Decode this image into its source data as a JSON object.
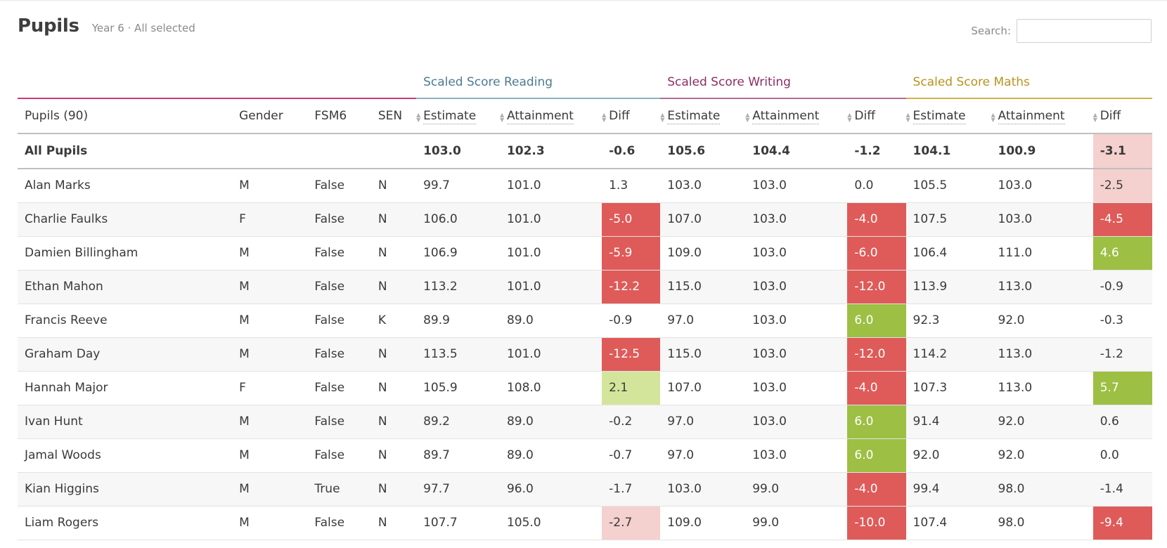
{
  "header": {
    "title": "Pupils",
    "subtitle": "Year 6 · All selected"
  },
  "search": {
    "label": "Search:",
    "value": "",
    "placeholder": ""
  },
  "groups": {
    "reading": "Scaled Score Reading",
    "writing": "Scaled Score Writing",
    "maths": "Scaled Score Maths"
  },
  "columns": {
    "pupils": "Pupils (90)",
    "gender": "Gender",
    "fsm6": "FSM6",
    "sen": "SEN",
    "estimate": "Estimate",
    "attainment": "Attainment",
    "diff": "Diff"
  },
  "colors": {
    "red": "#de5b59",
    "pink": "#f4d0cf",
    "green": "#9dbf44",
    "lightgreen": "#d3e59b"
  },
  "summary": {
    "label": "All Pupils",
    "reading": {
      "estimate": "103.0",
      "attainment": "102.3",
      "diff": "-0.6"
    },
    "writing": {
      "estimate": "105.6",
      "attainment": "104.4",
      "diff": "-1.2"
    },
    "maths": {
      "estimate": "104.1",
      "attainment": "100.9",
      "diff": "-3.1"
    }
  },
  "rows": [
    {
      "name": "Alan Marks",
      "gender": "M",
      "fsm6": "False",
      "sen": "N",
      "reading": {
        "estimate": "99.7",
        "attainment": "101.0",
        "diff": "1.3"
      },
      "writing": {
        "estimate": "103.0",
        "attainment": "103.0",
        "diff": "0.0"
      },
      "maths": {
        "estimate": "105.5",
        "attainment": "103.0",
        "diff": "-2.5"
      }
    },
    {
      "name": "Charlie Faulks",
      "gender": "F",
      "fsm6": "False",
      "sen": "N",
      "reading": {
        "estimate": "106.0",
        "attainment": "101.0",
        "diff": "-5.0"
      },
      "writing": {
        "estimate": "107.0",
        "attainment": "103.0",
        "diff": "-4.0"
      },
      "maths": {
        "estimate": "107.5",
        "attainment": "103.0",
        "diff": "-4.5"
      }
    },
    {
      "name": "Damien Billingham",
      "gender": "M",
      "fsm6": "False",
      "sen": "N",
      "reading": {
        "estimate": "106.9",
        "attainment": "101.0",
        "diff": "-5.9"
      },
      "writing": {
        "estimate": "109.0",
        "attainment": "103.0",
        "diff": "-6.0"
      },
      "maths": {
        "estimate": "106.4",
        "attainment": "111.0",
        "diff": "4.6"
      }
    },
    {
      "name": "Ethan Mahon",
      "gender": "M",
      "fsm6": "False",
      "sen": "N",
      "reading": {
        "estimate": "113.2",
        "attainment": "101.0",
        "diff": "-12.2"
      },
      "writing": {
        "estimate": "115.0",
        "attainment": "103.0",
        "diff": "-12.0"
      },
      "maths": {
        "estimate": "113.9",
        "attainment": "113.0",
        "diff": "-0.9"
      }
    },
    {
      "name": "Francis Reeve",
      "gender": "M",
      "fsm6": "False",
      "sen": "K",
      "reading": {
        "estimate": "89.9",
        "attainment": "89.0",
        "diff": "-0.9"
      },
      "writing": {
        "estimate": "97.0",
        "attainment": "103.0",
        "diff": "6.0"
      },
      "maths": {
        "estimate": "92.3",
        "attainment": "92.0",
        "diff": "-0.3"
      }
    },
    {
      "name": "Graham Day",
      "gender": "M",
      "fsm6": "False",
      "sen": "N",
      "reading": {
        "estimate": "113.5",
        "attainment": "101.0",
        "diff": "-12.5"
      },
      "writing": {
        "estimate": "115.0",
        "attainment": "103.0",
        "diff": "-12.0"
      },
      "maths": {
        "estimate": "114.2",
        "attainment": "113.0",
        "diff": "-1.2"
      }
    },
    {
      "name": "Hannah Major",
      "gender": "F",
      "fsm6": "False",
      "sen": "N",
      "reading": {
        "estimate": "105.9",
        "attainment": "108.0",
        "diff": "2.1"
      },
      "writing": {
        "estimate": "107.0",
        "attainment": "103.0",
        "diff": "-4.0"
      },
      "maths": {
        "estimate": "107.3",
        "attainment": "113.0",
        "diff": "5.7"
      }
    },
    {
      "name": "Ivan Hunt",
      "gender": "M",
      "fsm6": "False",
      "sen": "N",
      "reading": {
        "estimate": "89.2",
        "attainment": "89.0",
        "diff": "-0.2"
      },
      "writing": {
        "estimate": "97.0",
        "attainment": "103.0",
        "diff": "6.0"
      },
      "maths": {
        "estimate": "91.4",
        "attainment": "92.0",
        "diff": "0.6"
      }
    },
    {
      "name": "Jamal Woods",
      "gender": "M",
      "fsm6": "False",
      "sen": "N",
      "reading": {
        "estimate": "89.7",
        "attainment": "89.0",
        "diff": "-0.7"
      },
      "writing": {
        "estimate": "97.0",
        "attainment": "103.0",
        "diff": "6.0"
      },
      "maths": {
        "estimate": "92.0",
        "attainment": "92.0",
        "diff": "0.0"
      }
    },
    {
      "name": "Kian Higgins",
      "gender": "M",
      "fsm6": "True",
      "sen": "N",
      "reading": {
        "estimate": "97.7",
        "attainment": "96.0",
        "diff": "-1.7"
      },
      "writing": {
        "estimate": "103.0",
        "attainment": "99.0",
        "diff": "-4.0"
      },
      "maths": {
        "estimate": "99.4",
        "attainment": "98.0",
        "diff": "-1.4"
      }
    },
    {
      "name": "Liam Rogers",
      "gender": "M",
      "fsm6": "False",
      "sen": "N",
      "reading": {
        "estimate": "107.7",
        "attainment": "105.0",
        "diff": "-2.7"
      },
      "writing": {
        "estimate": "109.0",
        "attainment": "99.0",
        "diff": "-10.0"
      },
      "maths": {
        "estimate": "107.4",
        "attainment": "98.0",
        "diff": "-9.4"
      }
    }
  ]
}
